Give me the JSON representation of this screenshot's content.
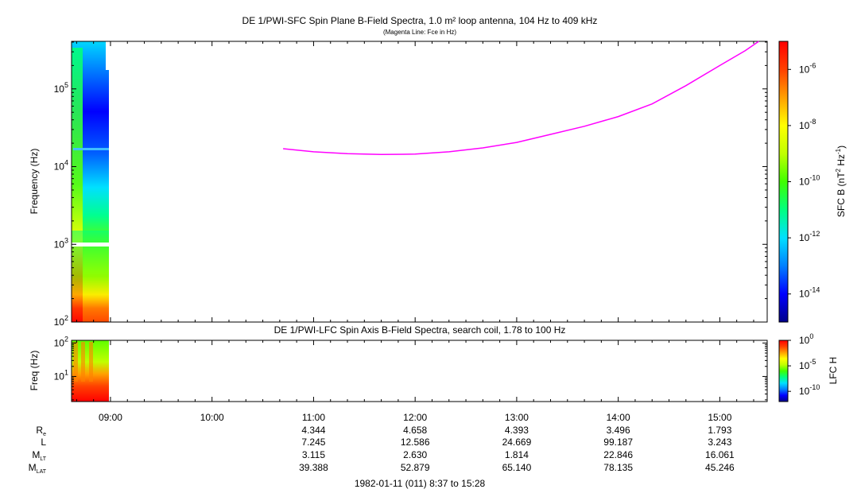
{
  "chart_data": [
    {
      "type": "heatmap",
      "title": "DE 1/PWI-SFC  Spin Plane B-Field Spectra, 1.0 m² loop antenna, 104 Hz to 409 kHz",
      "subtitle": "(Magenta Line: Fce in Hz)",
      "ylabel": "Frequency (Hz)",
      "yscale": "log",
      "ylim": [
        100,
        409000
      ],
      "xlim": [
        "08:37",
        "15:28"
      ],
      "ytick_exponents": [
        "2",
        "3",
        "4",
        "5"
      ],
      "data_time_range": [
        "08:37",
        "08:57"
      ],
      "colorbar": {
        "label_main": "SFC B (nT",
        "label_sup1": "2",
        "label_mid": " Hz",
        "label_sup2": "-1",
        "label_end": ")",
        "scale": "log",
        "range": [
          1e-15,
          1e-05
        ],
        "tick_exponents": [
          "-6",
          "-8",
          "-10",
          "-12",
          "-14"
        ],
        "colors": [
          "#00008b",
          "#0000ff",
          "#0080ff",
          "#00e0ff",
          "#00ff80",
          "#40ff00",
          "#c0ff00",
          "#ffff00",
          "#ffa000",
          "#ff4000",
          "#ff0000"
        ]
      },
      "series": [
        {
          "name": "Fce",
          "color": "#ff00ff",
          "x": [
            "10:42",
            "11:00",
            "11:20",
            "11:40",
            "12:00",
            "12:20",
            "12:40",
            "13:00",
            "13:20",
            "13:40",
            "14:00",
            "14:20",
            "14:40",
            "15:00",
            "15:15",
            "15:23"
          ],
          "y": [
            17000,
            15500,
            14700,
            14300,
            14500,
            15500,
            17400,
            20500,
            26000,
            33000,
            44000,
            64000,
            110000,
            200000,
            310000,
            409000
          ]
        }
      ]
    },
    {
      "type": "heatmap",
      "title": "DE 1/PWI-LFC  Spin Axis B-Field Spectra, search coil, 1.78 to 100 Hz",
      "ylabel": "Freq (Hz)",
      "yscale": "log",
      "ylim": [
        1.78,
        120
      ],
      "ytick_exponents": [
        "1",
        "2"
      ],
      "data_time_range": [
        "08:37",
        "08:57"
      ],
      "colorbar": {
        "label": "LFC H",
        "scale": "log",
        "range": [
          1e-12,
          1
        ],
        "tick_exponents": [
          "0",
          "-5",
          "-10"
        ]
      }
    }
  ],
  "time_axis": {
    "tick_labels": [
      "09:00",
      "10:00",
      "11:00",
      "12:00",
      "13:00",
      "14:00",
      "15:00"
    ]
  },
  "ephemeris": {
    "rows": [
      {
        "label": "R",
        "sub": "e",
        "values": [
          "",
          "",
          "4.344",
          "4.658",
          "4.393",
          "3.496",
          "1.793"
        ]
      },
      {
        "label": "L",
        "sub": "",
        "values": [
          "",
          "",
          "7.245",
          "12.586",
          "24.669",
          "99.187",
          "3.243"
        ]
      },
      {
        "label": "M",
        "sub": "LT",
        "values": [
          "",
          "",
          "3.115",
          "2.630",
          "1.814",
          "22.846",
          "16.061"
        ]
      },
      {
        "label": "M",
        "sub": "LAT",
        "values": [
          "",
          "",
          "39.388",
          "52.879",
          "65.140",
          "78.135",
          "45.246"
        ]
      }
    ]
  },
  "footer": "1982-01-11 (011) 8:37 to 15:28"
}
